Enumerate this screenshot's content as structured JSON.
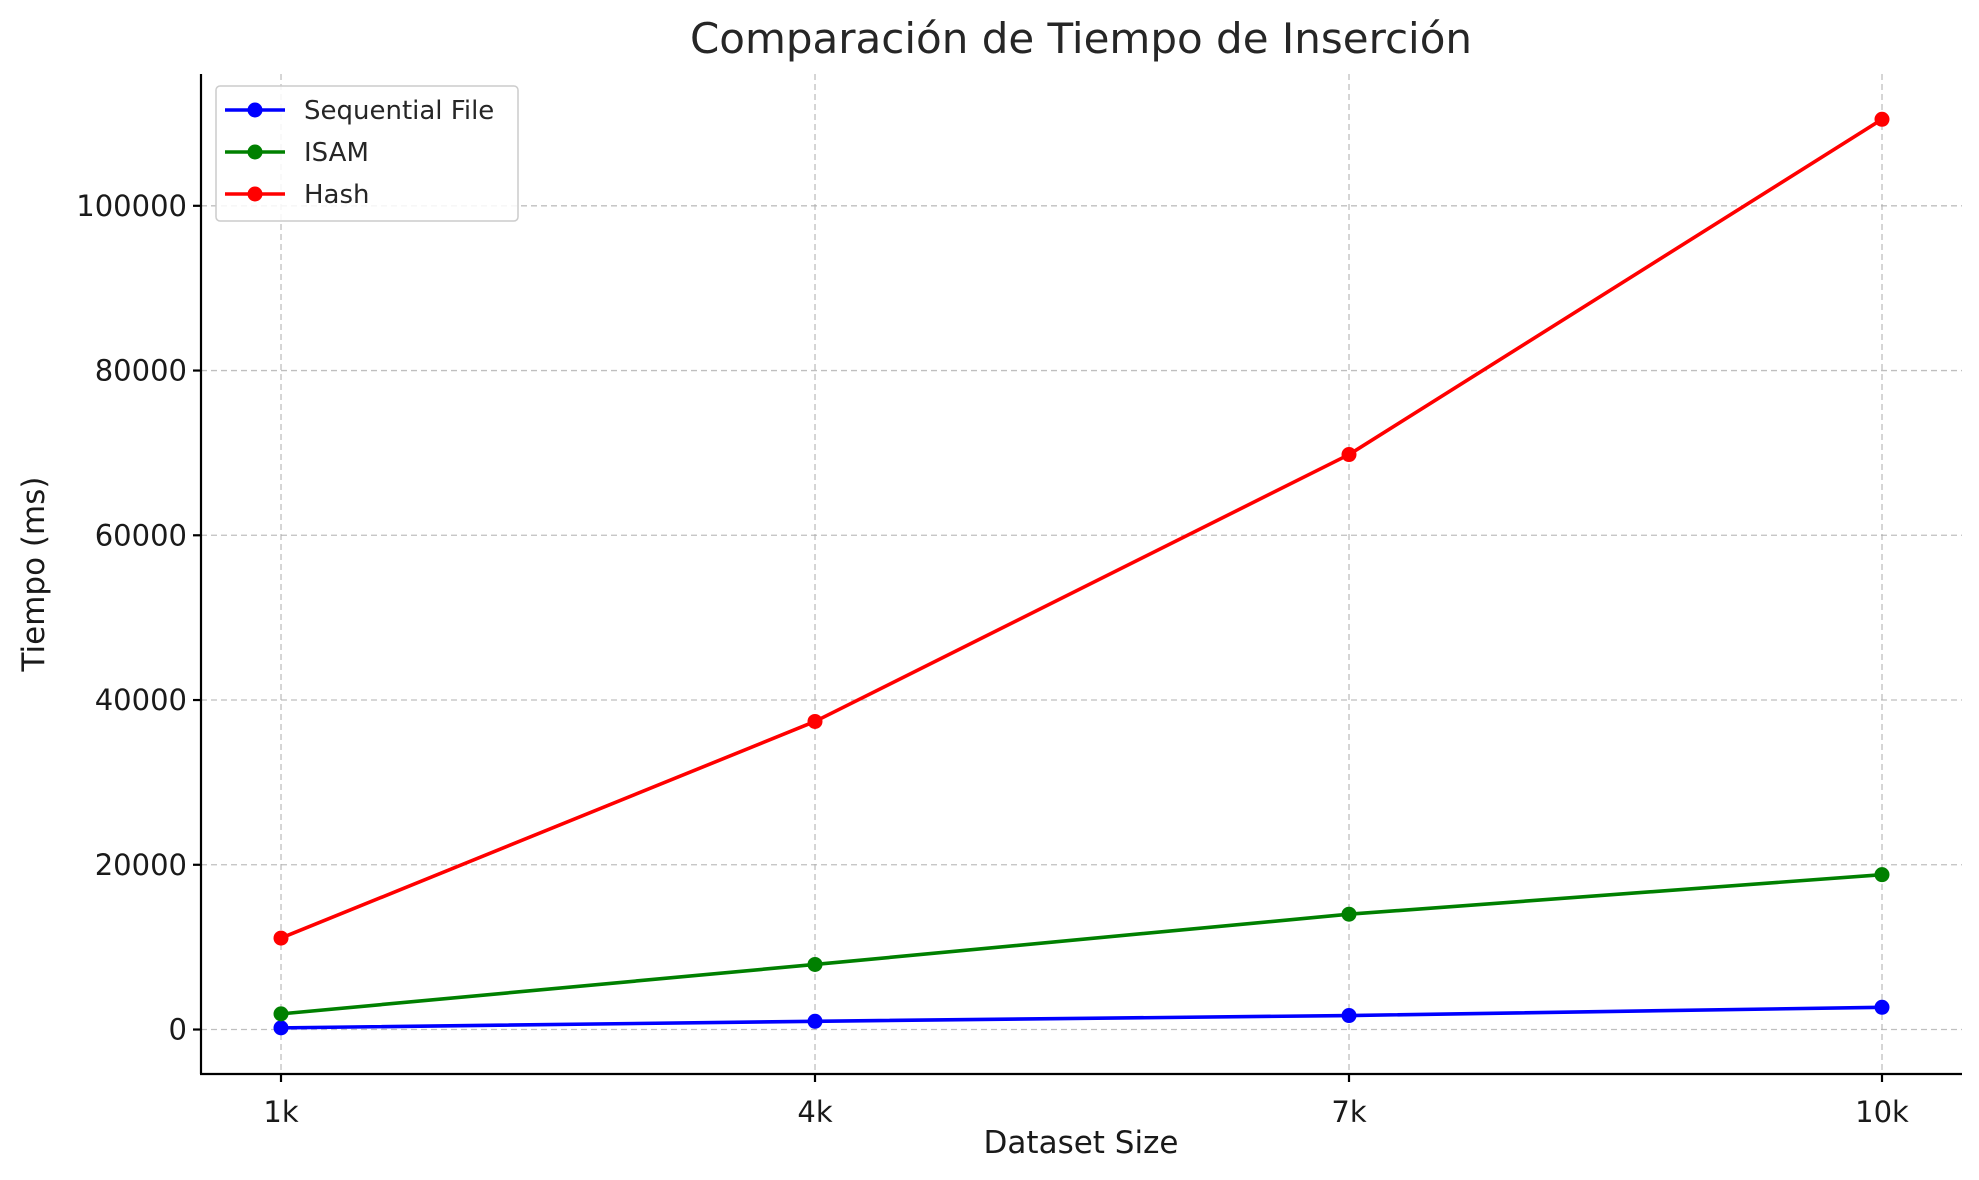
{
  "chart_data": {
    "type": "line",
    "title": "Comparación de Tiempo de Inserción",
    "xlabel": "Dataset Size",
    "ylabel": "Tiempo (ms)",
    "categories": [
      "1k",
      "4k",
      "7k",
      "10k"
    ],
    "ylim": [
      -5400,
      116000
    ],
    "yticks": [
      0,
      20000,
      40000,
      60000,
      80000,
      100000
    ],
    "ytick_labels": [
      "0",
      "20000",
      "40000",
      "60000",
      "80000",
      "100000"
    ],
    "grid": true,
    "legend_position": "top-left",
    "series": [
      {
        "name": "Sequential File",
        "color": "#0000ff",
        "values": [
          200,
          1000,
          1700,
          2700
        ]
      },
      {
        "name": "ISAM",
        "color": "#008000",
        "values": [
          1900,
          7900,
          14000,
          18800
        ]
      },
      {
        "name": "Hash",
        "color": "#ff0000",
        "values": [
          11100,
          37400,
          69800,
          110500
        ]
      }
    ]
  }
}
